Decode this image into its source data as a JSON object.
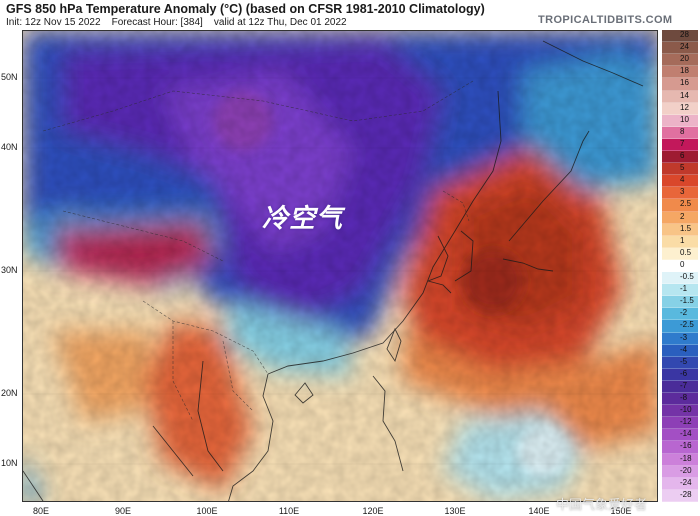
{
  "header": {
    "title": "GFS 850 hPa Temperature Anomaly (°C) (based on CFSR 1981-2010 Climatology)",
    "init": "Init: 12z Nov 15 2022",
    "forecast_hour": "Forecast Hour: [384]",
    "valid": "valid at 12z Thu, Dec 01 2022",
    "brand": "TROPICALTIDBITS.COM"
  },
  "map": {
    "lat_labels": [
      "50N",
      "40N",
      "30N",
      "20N",
      "10N"
    ],
    "lon_labels": [
      "80E",
      "90E",
      "100E",
      "110E",
      "120E",
      "130E",
      "140E",
      "150E"
    ],
    "annotation": "冷空气",
    "watermark": "中国气象爱好者"
  },
  "colorbar": {
    "labels": [
      "28",
      "24",
      "20",
      "18",
      "16",
      "14",
      "12",
      "10",
      "8",
      "7",
      "6",
      "5",
      "4",
      "3",
      "2.5",
      "2",
      "1.5",
      "1",
      "0.5",
      "0",
      "-0.5",
      "-1",
      "-1.5",
      "-2",
      "-2.5",
      "-3",
      "-4",
      "-5",
      "-6",
      "-7",
      "-8",
      "-10",
      "-12",
      "-14",
      "-16",
      "-18",
      "-20",
      "-24",
      "-28"
    ],
    "colors": [
      "#6e4a3e",
      "#8b5a4a",
      "#a56b5a",
      "#c07f70",
      "#d69a90",
      "#e6b8b0",
      "#f2d0c8",
      "#ecb3c8",
      "#e070a0",
      "#c2185b",
      "#9e1b32",
      "#c0392b",
      "#d9472b",
      "#e8663a",
      "#f08a4b",
      "#f5a764",
      "#f8c487",
      "#fadca6",
      "#fdf0cf",
      "#ffffff",
      "#dff3f8",
      "#b6e6f0",
      "#86d1e6",
      "#59b9de",
      "#3c9ad6",
      "#2f7bcc",
      "#2a5fbe",
      "#3248b0",
      "#3a36a3",
      "#4a2c99",
      "#5c2b9c",
      "#7433a7",
      "#8d3fb6",
      "#a34fc4",
      "#b866d0",
      "#cc80da",
      "#d99ce4",
      "#e4b6ec",
      "#eccdf2"
    ]
  }
}
